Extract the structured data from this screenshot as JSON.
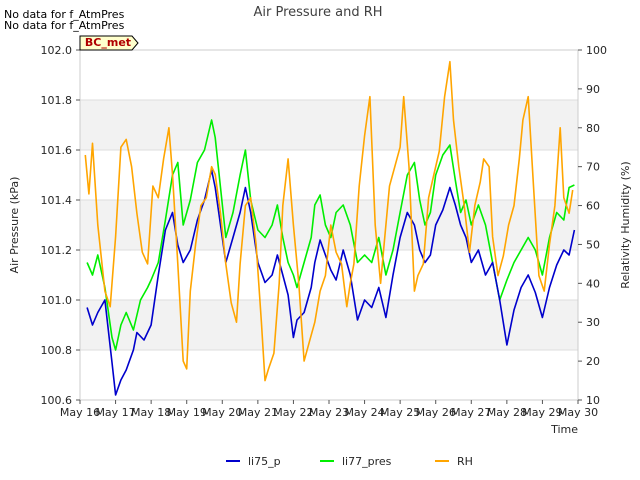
{
  "notes": [
    "No data for f_AtmPres",
    "No data for f_AtmPres"
  ],
  "chart_data": {
    "type": "line",
    "title": "Air Pressure and RH",
    "xlabel": "Time",
    "ylabel_left": "Air Pressure (kPa)",
    "ylabel_right": "Relativity Humidity (%)",
    "x_ticks": [
      "May 16",
      "May 17",
      "May 18",
      "May 19",
      "May 20",
      "May 21",
      "May 22",
      "May 23",
      "May 24",
      "May 25",
      "May 26",
      "May 27",
      "May 28",
      "May 29",
      "May 30"
    ],
    "xlim": [
      16,
      30
    ],
    "ylim_left": [
      100.6,
      102.0
    ],
    "ylim_right": [
      10,
      100
    ],
    "y_ticks_left": [
      "100.6",
      "100.8",
      "101.0",
      "101.2",
      "101.4",
      "101.6",
      "101.8",
      "102.0"
    ],
    "y_ticks_right": [
      "10",
      "20",
      "30",
      "40",
      "50",
      "60",
      "70",
      "80",
      "90",
      "100"
    ],
    "background_bands": "alternating grey",
    "legend_position": "bottom-center",
    "badge": {
      "label": "BC_met",
      "text_color": "#b00000",
      "fill": "#ffffcc"
    },
    "series": [
      {
        "name": "li75_p",
        "axis": "left",
        "color": "#0000cc",
        "x": [
          16.2,
          16.35,
          16.5,
          16.7,
          16.9,
          17.0,
          17.15,
          17.3,
          17.5,
          17.6,
          17.8,
          18.0,
          18.2,
          18.4,
          18.6,
          18.75,
          18.9,
          19.1,
          19.3,
          19.5,
          19.7,
          19.8,
          19.95,
          20.1,
          20.3,
          20.5,
          20.65,
          20.8,
          21.0,
          21.2,
          21.4,
          21.55,
          21.7,
          21.85,
          22.0,
          22.1,
          22.3,
          22.5,
          22.6,
          22.75,
          22.9,
          23.05,
          23.2,
          23.4,
          23.6,
          23.8,
          24.0,
          24.2,
          24.4,
          24.6,
          24.8,
          25.0,
          25.2,
          25.4,
          25.55,
          25.7,
          25.85,
          26.0,
          26.2,
          26.4,
          26.55,
          26.7,
          26.85,
          27.0,
          27.2,
          27.4,
          27.6,
          27.8,
          28.0,
          28.2,
          28.4,
          28.6,
          28.8,
          29.0,
          29.2,
          29.4,
          29.6,
          29.75,
          29.9
        ],
        "y": [
          100.97,
          100.9,
          100.95,
          101.0,
          100.75,
          100.62,
          100.68,
          100.72,
          100.8,
          100.87,
          100.84,
          100.9,
          101.1,
          101.28,
          101.35,
          101.22,
          101.15,
          101.2,
          101.32,
          101.4,
          101.52,
          101.45,
          101.3,
          101.15,
          101.25,
          101.35,
          101.45,
          101.35,
          101.15,
          101.07,
          101.1,
          101.18,
          101.1,
          101.02,
          100.85,
          100.92,
          100.95,
          101.05,
          101.15,
          101.24,
          101.18,
          101.12,
          101.08,
          101.2,
          101.1,
          100.92,
          101.0,
          100.97,
          101.05,
          100.93,
          101.1,
          101.25,
          101.35,
          101.3,
          101.2,
          101.15,
          101.18,
          101.3,
          101.36,
          101.45,
          101.38,
          101.3,
          101.25,
          101.15,
          101.2,
          101.1,
          101.15,
          101.0,
          100.82,
          100.96,
          101.05,
          101.1,
          101.03,
          100.93,
          101.05,
          101.14,
          101.2,
          101.18,
          101.28
        ]
      },
      {
        "name": "li77_pres",
        "axis": "left",
        "color": "#00ee00",
        "x": [
          16.2,
          16.35,
          16.5,
          16.7,
          16.9,
          17.0,
          17.15,
          17.3,
          17.5,
          17.7,
          17.9,
          18.0,
          18.2,
          18.4,
          18.6,
          18.75,
          18.9,
          19.1,
          19.3,
          19.5,
          19.7,
          19.8,
          19.95,
          20.1,
          20.3,
          20.5,
          20.65,
          20.8,
          21.0,
          21.2,
          21.4,
          21.55,
          21.7,
          21.85,
          22.0,
          22.1,
          22.3,
          22.5,
          22.6,
          22.75,
          22.9,
          23.05,
          23.2,
          23.4,
          23.6,
          23.8,
          24.0,
          24.2,
          24.4,
          24.6,
          24.8,
          25.0,
          25.2,
          25.4,
          25.55,
          25.7,
          25.85,
          26.0,
          26.2,
          26.4,
          26.55,
          26.7,
          26.85,
          27.0,
          27.2,
          27.4,
          27.6,
          27.8,
          28.0,
          28.2,
          28.4,
          28.6,
          28.8,
          29.0,
          29.2,
          29.4,
          29.6,
          29.75,
          29.9
        ],
        "y": [
          101.15,
          101.1,
          101.18,
          101.05,
          100.85,
          100.8,
          100.9,
          100.95,
          100.88,
          101.0,
          101.05,
          101.08,
          101.15,
          101.32,
          101.5,
          101.55,
          101.3,
          101.4,
          101.55,
          101.6,
          101.72,
          101.65,
          101.45,
          101.25,
          101.35,
          101.5,
          101.6,
          101.4,
          101.28,
          101.25,
          101.3,
          101.38,
          101.25,
          101.15,
          101.1,
          101.05,
          101.15,
          101.25,
          101.38,
          101.42,
          101.3,
          101.25,
          101.35,
          101.38,
          101.3,
          101.15,
          101.18,
          101.15,
          101.25,
          101.1,
          101.2,
          101.35,
          101.5,
          101.55,
          101.4,
          101.3,
          101.35,
          101.5,
          101.58,
          101.62,
          101.48,
          101.35,
          101.4,
          101.3,
          101.38,
          101.3,
          101.15,
          101.0,
          101.08,
          101.15,
          101.2,
          101.25,
          101.2,
          101.1,
          101.25,
          101.35,
          101.32,
          101.45,
          101.46
        ]
      },
      {
        "name": "RH",
        "axis": "right",
        "color": "#ffa500",
        "x": [
          16.15,
          16.25,
          16.35,
          16.5,
          16.7,
          16.85,
          17.0,
          17.15,
          17.3,
          17.45,
          17.6,
          17.75,
          17.9,
          18.05,
          18.2,
          18.35,
          18.5,
          18.6,
          18.75,
          18.9,
          19.0,
          19.1,
          19.25,
          19.4,
          19.55,
          19.7,
          19.8,
          19.95,
          20.1,
          20.25,
          20.4,
          20.5,
          20.65,
          20.8,
          20.95,
          21.1,
          21.2,
          21.3,
          21.45,
          21.6,
          21.7,
          21.85,
          22.0,
          22.15,
          22.3,
          22.45,
          22.6,
          22.75,
          22.9,
          23.05,
          23.2,
          23.35,
          23.5,
          23.6,
          23.7,
          23.85,
          24.0,
          24.15,
          24.3,
          24.45,
          24.55,
          24.7,
          24.85,
          25.0,
          25.1,
          25.25,
          25.4,
          25.5,
          25.65,
          25.8,
          25.95,
          26.1,
          26.25,
          26.4,
          26.5,
          26.65,
          26.8,
          26.95,
          27.1,
          27.25,
          27.35,
          27.5,
          27.6,
          27.75,
          27.9,
          28.05,
          28.2,
          28.35,
          28.45,
          28.6,
          28.75,
          28.9,
          29.05,
          29.2,
          29.35,
          29.5,
          29.6,
          29.75,
          29.85
        ],
        "y": [
          73,
          63,
          76,
          55,
          38,
          34,
          52,
          75,
          77,
          70,
          58,
          48,
          45,
          65,
          62,
          72,
          80,
          68,
          45,
          20,
          18,
          38,
          50,
          60,
          62,
          70,
          68,
          58,
          45,
          35,
          30,
          45,
          60,
          62,
          50,
          30,
          15,
          18,
          22,
          40,
          60,
          72,
          55,
          40,
          20,
          25,
          30,
          38,
          42,
          55,
          48,
          45,
          34,
          40,
          45,
          65,
          78,
          88,
          55,
          40,
          50,
          65,
          70,
          75,
          88,
          70,
          38,
          42,
          45,
          62,
          68,
          74,
          88,
          97,
          82,
          70,
          60,
          48,
          60,
          66,
          72,
          70,
          52,
          42,
          47,
          55,
          60,
          72,
          82,
          88,
          65,
          42,
          38,
          50,
          60,
          80,
          62,
          58,
          64
        ]
      }
    ]
  }
}
